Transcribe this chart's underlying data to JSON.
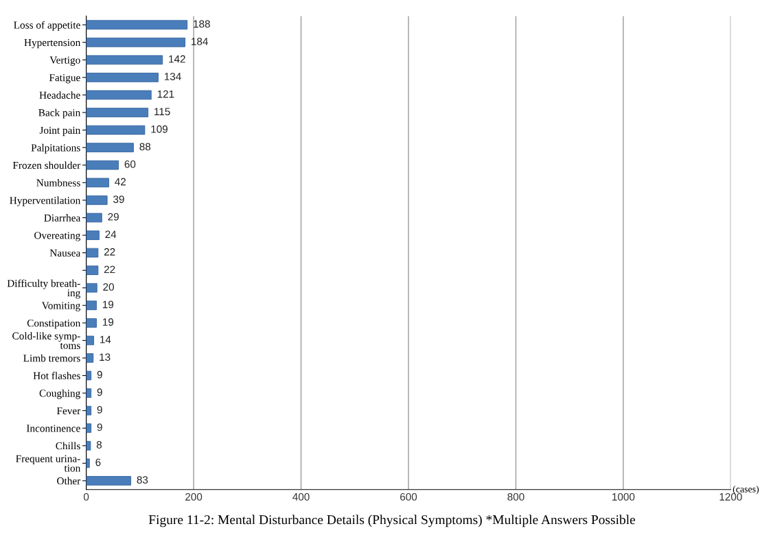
{
  "chart_data": {
    "type": "bar",
    "orientation": "horizontal",
    "title": "Figure 11-2: Mental Disturbance Details (Physical Symptoms) *Multiple Answers Possible",
    "xlabel": "(cases)",
    "categories": [
      "Loss of appetite",
      "Hypertension",
      "Vertigo",
      "Fatigue",
      "Headache",
      "Back pain",
      "Joint pain",
      "Palpitations",
      "Frozen shoulder",
      "Numbness",
      "Hyperventilation",
      "Diarrhea",
      "Overeating",
      "Nausea",
      null,
      "Difficulty breath-\ning",
      "Vomiting",
      "Constipation",
      "Cold-like symp-\ntoms",
      "Limb tremors",
      "Hot flashes",
      "Coughing",
      "Fever",
      "Incontinence",
      "Chills",
      "Frequent urina-\ntion",
      "Other"
    ],
    "values": [
      188,
      184,
      142,
      134,
      121,
      115,
      109,
      88,
      60,
      42,
      39,
      29,
      24,
      22,
      22,
      20,
      19,
      19,
      14,
      13,
      9,
      9,
      9,
      9,
      8,
      6,
      83
    ],
    "color": "#4a7ebb",
    "data_labels": true,
    "xlim": [
      0,
      1200
    ],
    "xticks": [
      0,
      200,
      400,
      600,
      800,
      1000,
      1200
    ],
    "grid": "x",
    "legend": false
  }
}
